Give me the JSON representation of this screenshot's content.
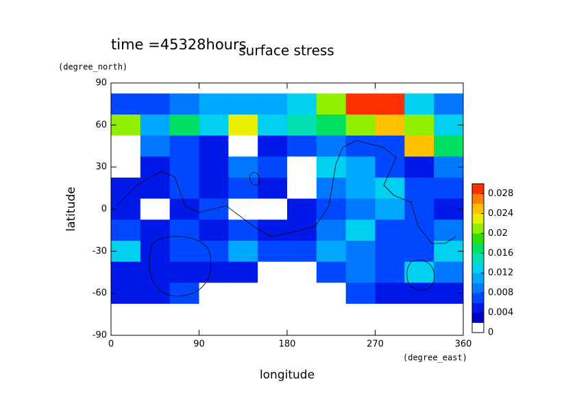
{
  "chart_data": {
    "type": "contour",
    "title": "surface stress",
    "subtitle": "time =45328hours",
    "x_label": "longitude",
    "x_unit": "(degree_east)",
    "y_label": "latitude",
    "y_unit": "(degree_north)",
    "x": [
      15,
      45,
      75,
      105,
      135,
      165,
      195,
      225,
      255,
      285,
      315,
      345
    ],
    "y": [
      75,
      60,
      45,
      30,
      15,
      0,
      -15,
      -30,
      -45,
      -60,
      -75
    ],
    "z": [
      [
        0.006,
        0.006,
        0.008,
        0.01,
        0.01,
        0.01,
        0.012,
        0.02,
        0.028,
        0.028,
        0.012,
        0.008
      ],
      [
        0.02,
        0.01,
        0.016,
        0.012,
        0.022,
        0.012,
        0.014,
        0.016,
        0.02,
        0.024,
        0.02,
        0.012
      ],
      [
        0.001,
        0.008,
        0.006,
        0.004,
        0.001,
        0.004,
        0.006,
        0.008,
        0.006,
        0.006,
        0.024,
        0.016
      ],
      [
        0.001,
        0.004,
        0.006,
        0.004,
        0.008,
        0.006,
        0.001,
        0.012,
        0.01,
        0.006,
        0.004,
        0.008
      ],
      [
        0.004,
        0.004,
        0.006,
        0.004,
        0.006,
        0.004,
        0.001,
        0.008,
        0.01,
        0.012,
        0.006,
        0.006
      ],
      [
        0.004,
        0.001,
        0.004,
        0.006,
        0.001,
        0.001,
        0.004,
        0.006,
        0.008,
        0.01,
        0.006,
        0.004
      ],
      [
        0.006,
        0.004,
        0.006,
        0.004,
        0.006,
        0.004,
        0.004,
        0.008,
        0.012,
        0.006,
        0.006,
        0.008
      ],
      [
        0.012,
        0.004,
        0.006,
        0.006,
        0.01,
        0.006,
        0.006,
        0.01,
        0.008,
        0.006,
        0.006,
        0.012
      ],
      [
        0.004,
        0.004,
        0.004,
        0.004,
        0.004,
        0.001,
        0.001,
        0.006,
        0.008,
        0.006,
        0.012,
        0.008
      ],
      [
        0.004,
        0.004,
        0.006,
        0.001,
        0.001,
        0.001,
        0.001,
        0.001,
        0.006,
        0.004,
        0.004,
        0.004
      ],
      [
        0,
        0,
        0,
        0,
        0,
        0,
        0,
        0,
        0,
        0,
        0,
        0
      ]
    ],
    "xlim": [
      0,
      360
    ],
    "xticks": [
      0,
      90,
      180,
      270,
      360
    ],
    "ylim": [
      -90,
      90
    ],
    "yticks": [
      -90,
      -60,
      -30,
      0,
      30,
      60,
      90
    ],
    "zlim": [
      0,
      0.03
    ],
    "zticks": [
      0,
      0.004,
      0.008,
      0.012,
      0.016,
      0.02,
      0.024,
      0.028
    ],
    "colors": [
      "#ffffff",
      "#0000c0",
      "#0018e8",
      "#0048ff",
      "#0078ff",
      "#00a8ff",
      "#00d0f0",
      "#00e0b0",
      "#00e060",
      "#30e000",
      "#90f000",
      "#e8f000",
      "#ffc000",
      "#ff8000",
      "#ff3000"
    ]
  }
}
